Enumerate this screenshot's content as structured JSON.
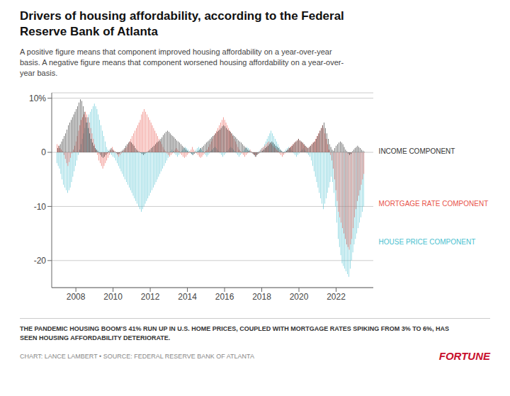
{
  "chart_data": {
    "type": "bar",
    "title": "Drivers of housing affordability, according to the Federal\nReserve Bank of Atlanta",
    "subtitle": "A positive figure means that component improved housing affordability on a year-over-year\nbasis. A negative figure means that component worsened housing affordability on a year-over-\nyear basis.",
    "footer": "THE PANDEMIC HOUSING BOOM'S 41% RUN UP IN U.S. HOME PRICES, COUPLED WITH MORTGAGE RATES SPIKING FROM 3% TO 6%, HAS\nSEEN HOUSING AFFORDABILITY DETERIORATE.",
    "source": "CHART: LANCE LAMBERT • SOURCE: FEDERAL RESERVE BANK OF ATLANTA",
    "brand": {
      "text": "FORTUNE",
      "color": "#c8102e"
    },
    "grid": true,
    "xlim": [
      2006.7,
      2024.0
    ],
    "xticks": [
      2008,
      2010,
      2012,
      2014,
      2016,
      2018,
      2020,
      2022
    ],
    "ylim": [
      -25,
      11
    ],
    "yticks": [
      {
        "value": 10,
        "label": "10%"
      },
      0,
      -10,
      -20
    ],
    "x": [
      2007,
      2007.0721,
      2007.1441,
      2007.2162,
      2007.2882,
      2007.3603,
      2007.4323,
      2007.5044,
      2007.5764,
      2007.6485,
      2007.7205,
      2007.7926,
      2007.8646,
      2007.9367,
      2008.0087,
      2008.0808,
      2008.1528,
      2008.2249,
      2008.2969,
      2008.369,
      2008.441,
      2008.5131,
      2008.5852,
      2008.6572,
      2008.7293,
      2008.8013,
      2008.8734,
      2008.9454,
      2009.0175,
      2009.0895,
      2009.1616,
      2009.2336,
      2009.3057,
      2009.3777,
      2009.4498,
      2009.5218,
      2009.5939,
      2009.6659,
      2009.738,
      2009.81,
      2009.8821,
      2009.9541,
      2010.0262,
      2010.0983,
      2010.1703,
      2010.2424,
      2010.3144,
      2010.3865,
      2010.4585,
      2010.5306,
      2010.6026,
      2010.6747,
      2010.7467,
      2010.8188,
      2010.8908,
      2010.9629,
      2011.0349,
      2011.107,
      2011.179,
      2011.2511,
      2011.3231,
      2011.3952,
      2011.4672,
      2011.5393,
      2011.6114,
      2011.6834,
      2011.7555,
      2011.8275,
      2011.8996,
      2011.9716,
      2012.0437,
      2012.1157,
      2012.1878,
      2012.2598,
      2012.3319,
      2012.4039,
      2012.476,
      2012.548,
      2012.6201,
      2012.6921,
      2012.7642,
      2012.8362,
      2012.9083,
      2012.9803,
      2013.0524,
      2013.1245,
      2013.1965,
      2013.2686,
      2013.3406,
      2013.4127,
      2013.4847,
      2013.5568,
      2013.6288,
      2013.7009,
      2013.7729,
      2013.845,
      2013.917,
      2013.9891,
      2014.0611,
      2014.1332,
      2014.2052,
      2014.2773,
      2014.3493,
      2014.4214,
      2014.4934,
      2014.5655,
      2014.6376,
      2014.7096,
      2014.7817,
      2014.8537,
      2014.9258,
      2014.9978,
      2015.0699,
      2015.1419,
      2015.214,
      2015.286,
      2015.3581,
      2015.4301,
      2015.5022,
      2015.5742,
      2015.6463,
      2015.7183,
      2015.7904,
      2015.8624,
      2015.9345,
      2016.0066,
      2016.0786,
      2016.1507,
      2016.2227,
      2016.2948,
      2016.3668,
      2016.4389,
      2016.5109,
      2016.583,
      2016.655,
      2016.7271,
      2016.7991,
      2016.8712,
      2016.9432,
      2017.0153,
      2017.0873,
      2017.1594,
      2017.2314,
      2017.3035,
      2017.3755,
      2017.4476,
      2017.5197,
      2017.5917,
      2017.6638,
      2017.7358,
      2017.8079,
      2017.8799,
      2017.952,
      2018.024,
      2018.0961,
      2018.1681,
      2018.2402,
      2018.3122,
      2018.3843,
      2018.4563,
      2018.5284,
      2018.6004,
      2018.6725,
      2018.7445,
      2018.8166,
      2018.8886,
      2018.9607,
      2019.0328,
      2019.1048,
      2019.1769,
      2019.2489,
      2019.321,
      2019.393,
      2019.4651,
      2019.5371,
      2019.6092,
      2019.6812,
      2019.7533,
      2019.8253,
      2019.8974,
      2019.9694,
      2020.0415,
      2020.1135,
      2020.1856,
      2020.2576,
      2020.3297,
      2020.4017,
      2020.4738,
      2020.5459,
      2020.6179,
      2020.69,
      2020.762,
      2020.8341,
      2020.9061,
      2020.9782,
      2021.0502,
      2021.1223,
      2021.1943,
      2021.2664,
      2021.3384,
      2021.4105,
      2021.4825,
      2021.5546,
      2021.6266,
      2021.6987,
      2021.7707,
      2021.8428,
      2021.9148,
      2021.9869,
      2022.059,
      2022.131,
      2022.2031,
      2022.2751,
      2022.3472,
      2022.4192,
      2022.4913,
      2022.5633,
      2022.6354,
      2022.7074,
      2022.7795,
      2022.8515,
      2022.9236,
      2022.9956,
      2023.0677,
      2023.1397,
      2023.2118,
      2023.2838,
      2023.3559,
      2023.4279,
      2023.5
    ],
    "series": [
      {
        "color": "#4bbfcf",
        "values": [
          -2.0,
          -2.5,
          -3.0,
          -4.0,
          -5.0,
          -6.0,
          -6.5,
          -7.0,
          -7.5,
          -7.0,
          -6.5,
          -5.5,
          -4.5,
          -3.5,
          -2.5,
          -1.5,
          -0.5,
          0.5,
          1.5,
          2.5,
          3.5,
          4.5,
          5.5,
          6.5,
          7.0,
          7.5,
          8.0,
          8.5,
          9.0,
          8.5,
          8.0,
          7.0,
          6.0,
          5.0,
          4.0,
          3.0,
          2.0,
          1.0,
          0.5,
          0.2,
          -0.2,
          -0.5,
          -0.8,
          -1.0,
          -1.5,
          -2.0,
          -2.5,
          -3.0,
          -3.5,
          -4.0,
          -4.5,
          -5.0,
          -5.5,
          -6.0,
          -6.5,
          -7.0,
          -7.5,
          -8.0,
          -8.5,
          -9.0,
          -9.5,
          -10.0,
          -10.5,
          -11.0,
          -10.5,
          -10.0,
          -9.5,
          -9.0,
          -8.5,
          -8.0,
          -7.5,
          -7.0,
          -6.5,
          -6.0,
          -5.5,
          -5.0,
          -4.5,
          -4.0,
          -3.5,
          -3.0,
          -2.5,
          -2.0,
          -1.5,
          -1.0,
          -0.5,
          0.2,
          0.5,
          0.2,
          -0.2,
          -0.5,
          -0.8,
          -0.5,
          -0.2,
          0.2,
          0.5,
          0.8,
          1.0,
          0.8,
          0.5,
          0.2,
          -0.2,
          -0.5,
          -0.2,
          0.2,
          0.5,
          0.8,
          1.0,
          0.8,
          0.5,
          0.2,
          -0.2,
          -0.5,
          -0.8,
          -0.5,
          -0.2,
          0.2,
          0.5,
          0.8,
          1.0,
          0.8,
          0.5,
          0.2,
          -0.2,
          -0.5,
          -0.8,
          -0.5,
          -0.2,
          0.2,
          0.5,
          0.8,
          1.0,
          0.8,
          0.5,
          0.2,
          -0.2,
          -0.5,
          -0.8,
          -0.5,
          -0.2,
          0.2,
          0.5,
          0.8,
          1.0,
          0.8,
          0.5,
          0.2,
          -0.2,
          -0.5,
          -0.8,
          -0.5,
          -0.2,
          0.2,
          0.5,
          0.8,
          1.0,
          1.5,
          2.0,
          2.5,
          3.0,
          3.5,
          4.0,
          3.5,
          3.0,
          2.5,
          2.0,
          1.5,
          1.0,
          0.5,
          0.2,
          -0.2,
          0.2,
          0.5,
          0.8,
          1.0,
          0.8,
          0.5,
          0.2,
          -0.2,
          -0.5,
          -0.8,
          -0.5,
          -0.2,
          0.2,
          0.5,
          0.8,
          0.5,
          0.2,
          -0.2,
          -0.5,
          -0.8,
          -1.5,
          -2.5,
          -3.5,
          -4.5,
          -5.5,
          -6.5,
          -7.5,
          -8.5,
          -9.5,
          -10.5,
          -9.5,
          -8.5,
          -7.5,
          -6.5,
          -5.5,
          -4.5,
          -5.5,
          -7.5,
          -10.0,
          -13.0,
          -16.0,
          -17.5,
          -19.0,
          -20.5,
          -21.0,
          -21.5,
          -22.0,
          -22.5,
          -23.0,
          -21.5,
          -20.0,
          -18.5,
          -17.0,
          -16.0,
          -15.0,
          -14.0,
          -13.0,
          -12.0,
          -11.0,
          -10.0
        ]
      },
      {
        "color": "#e8534a",
        "values": [
          1.5,
          1.2,
          0.8,
          0.5,
          0.2,
          -0.5,
          -1.2,
          -2.0,
          -2.5,
          -1.8,
          -1.0,
          -0.2,
          0.5,
          1.2,
          2.0,
          3.0,
          4.0,
          5.0,
          6.0,
          6.5,
          7.0,
          7.5,
          7.0,
          6.5,
          5.5,
          4.5,
          3.5,
          2.5,
          1.5,
          0.5,
          -0.5,
          -1.5,
          -2.0,
          -2.5,
          -3.0,
          -2.5,
          -2.0,
          -1.5,
          -1.0,
          -0.5,
          0.5,
          1.0,
          0.5,
          0.2,
          -0.2,
          -0.5,
          -0.8,
          -0.5,
          -0.2,
          0.2,
          0.5,
          0.8,
          1.0,
          1.5,
          2.0,
          2.5,
          3.0,
          3.5,
          4.0,
          4.5,
          5.0,
          5.5,
          6.0,
          7.0,
          7.5,
          8.0,
          7.5,
          7.0,
          6.5,
          6.0,
          5.5,
          5.0,
          4.5,
          4.0,
          3.5,
          3.0,
          2.5,
          2.0,
          1.5,
          1.0,
          0.5,
          0.2,
          -0.2,
          -0.5,
          -0.8,
          -0.5,
          -0.2,
          0.2,
          0.5,
          0.8,
          0.5,
          0.2,
          -0.2,
          -0.5,
          -0.8,
          -1.0,
          -0.8,
          -0.5,
          -0.2,
          0.2,
          0.5,
          1.0,
          0.5,
          0.2,
          -0.2,
          -0.5,
          -0.8,
          -1.0,
          -0.8,
          -0.5,
          -0.2,
          0.2,
          0.5,
          1.0,
          1.5,
          2.0,
          2.5,
          3.0,
          3.5,
          4.0,
          4.5,
          5.0,
          5.5,
          6.0,
          6.5,
          6.0,
          5.5,
          5.0,
          4.5,
          4.0,
          3.5,
          3.0,
          2.5,
          2.0,
          1.5,
          1.0,
          0.5,
          0.2,
          -0.2,
          -0.5,
          -0.8,
          -0.5,
          -0.2,
          0.2,
          0.5,
          0.2,
          -0.2,
          -0.5,
          -0.8,
          -0.5,
          -0.2,
          0.2,
          0.5,
          0.8,
          1.0,
          1.2,
          1.5,
          1.8,
          2.0,
          1.8,
          1.5,
          1.2,
          1.0,
          0.8,
          0.5,
          0.2,
          -0.2,
          -0.5,
          -0.8,
          -0.5,
          -0.2,
          0.2,
          0.5,
          0.8,
          1.0,
          1.2,
          1.5,
          1.8,
          2.0,
          2.2,
          2.5,
          2.2,
          2.0,
          1.8,
          1.5,
          1.2,
          1.0,
          0.8,
          1.0,
          1.2,
          1.5,
          1.8,
          2.0,
          2.5,
          3.0,
          3.5,
          4.0,
          4.5,
          5.0,
          4.5,
          3.5,
          2.5,
          1.5,
          0.5,
          -0.5,
          -1.5,
          -3.0,
          -5.0,
          -7.0,
          -9.0,
          -11.0,
          -12.0,
          -13.0,
          -14.0,
          -15.0,
          -16.0,
          -17.0,
          -17.5,
          -18.0,
          -17.0,
          -16.0,
          -14.0,
          -12.0,
          -10.5,
          -9.0,
          -8.0,
          -7.0,
          -6.0,
          -5.0,
          -4.0
        ]
      },
      {
        "color": "#1a1a1a",
        "values": [
          0.8,
          1.2,
          1.5,
          2.0,
          2.5,
          3.0,
          3.5,
          4.2,
          5.0,
          5.5,
          6.0,
          6.5,
          7.0,
          7.5,
          8.0,
          8.5,
          9.2,
          9.8,
          9.5,
          8.5,
          7.5,
          6.5,
          5.5,
          4.5,
          3.5,
          2.5,
          1.8,
          1.2,
          0.8,
          0.5,
          0.3,
          -0.2,
          -0.5,
          -0.8,
          -1.0,
          -0.8,
          -0.5,
          -0.2,
          0.2,
          0.5,
          0.8,
          0.5,
          0.3,
          0.1,
          -0.1,
          -0.3,
          -0.2,
          0.1,
          0.3,
          0.5,
          0.8,
          1.2,
          1.5,
          1.8,
          2.0,
          1.8,
          1.5,
          1.2,
          0.8,
          0.5,
          0.3,
          0.1,
          -0.1,
          -0.3,
          -0.5,
          -0.3,
          -0.1,
          0.1,
          0.3,
          0.5,
          0.8,
          1.0,
          1.2,
          1.5,
          1.8,
          2.0,
          2.2,
          2.5,
          2.8,
          3.2,
          3.5,
          3.8,
          4.0,
          3.8,
          3.5,
          3.2,
          3.0,
          2.8,
          2.5,
          2.2,
          2.0,
          1.8,
          1.5,
          1.2,
          1.0,
          0.8,
          0.5,
          0.3,
          0.1,
          -0.1,
          -0.3,
          -0.5,
          -0.3,
          -0.1,
          0.1,
          0.3,
          0.5,
          0.8,
          1.0,
          1.2,
          1.5,
          1.8,
          2.0,
          2.2,
          2.5,
          2.8,
          3.0,
          3.2,
          3.5,
          3.8,
          4.0,
          4.2,
          4.5,
          4.8,
          5.0,
          4.8,
          4.5,
          4.2,
          4.0,
          3.8,
          3.5,
          3.2,
          3.0,
          2.8,
          2.5,
          2.2,
          2.0,
          1.8,
          1.5,
          1.2,
          1.0,
          0.8,
          0.5,
          0.3,
          0.1,
          -0.1,
          -0.3,
          -0.5,
          -0.8,
          -0.5,
          -0.3,
          -0.1,
          0.1,
          0.3,
          0.5,
          0.8,
          1.0,
          1.2,
          1.5,
          1.8,
          2.0,
          1.8,
          1.5,
          1.2,
          1.0,
          0.8,
          0.5,
          0.3,
          0.1,
          -0.1,
          0.1,
          0.3,
          0.5,
          0.8,
          1.0,
          1.2,
          1.5,
          1.8,
          2.0,
          2.2,
          2.5,
          2.2,
          2.0,
          1.8,
          1.5,
          1.2,
          1.0,
          0.8,
          1.0,
          1.2,
          1.5,
          1.8,
          2.0,
          2.5,
          3.0,
          3.5,
          4.0,
          4.5,
          5.0,
          5.5,
          4.5,
          3.5,
          2.5,
          1.5,
          1.0,
          0.5,
          0.3,
          0.8,
          1.2,
          1.5,
          1.8,
          2.0,
          1.8,
          1.5,
          1.0,
          0.5,
          0.2,
          -0.2,
          -0.5,
          -0.3,
          0.2,
          0.5,
          0.8,
          1.0,
          1.2,
          1.0,
          0.8,
          0.5,
          0.3,
          0.1
        ]
      }
    ],
    "annotations": [
      {
        "text": "INCOME COMPONENT",
        "x": 2024.1,
        "y": 0.2,
        "color": "#333333"
      },
      {
        "text": "MORTGAGE RATE COMPONENT",
        "x": 2024.1,
        "y": -9.5,
        "color": "#e8534a"
      },
      {
        "text": "HOUSE PRICE COMPONENT",
        "x": 2024.1,
        "y": -16.5,
        "color": "#4bbfcf"
      }
    ]
  }
}
